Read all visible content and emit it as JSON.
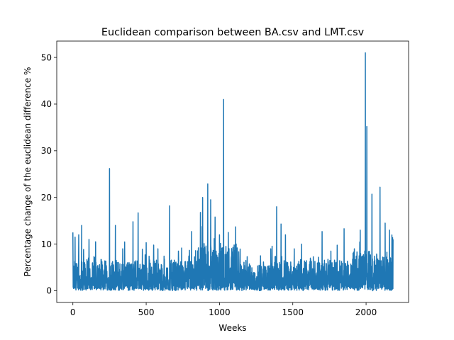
{
  "chart_data": {
    "type": "line",
    "title": "Euclidean comparison between BA.csv and LMT.csv",
    "xlabel": "Weeks",
    "ylabel": "Percentage change of the euclidean difference %",
    "xlim": [
      -110,
      2290
    ],
    "ylim": [
      -2.5,
      53.5
    ],
    "xticks": [
      0,
      500,
      1000,
      1500,
      2000
    ],
    "yticks": [
      0,
      10,
      20,
      30,
      40,
      50
    ],
    "grid": false,
    "legend": "none",
    "line_color": "#1f77b4",
    "n_points": 2185,
    "series": [
      {
        "peaks": [
          {
            "x": 0,
            "y": 12.5
          },
          {
            "x": 15,
            "y": 11.5
          },
          {
            "x": 40,
            "y": 12.0
          },
          {
            "x": 60,
            "y": 14.0
          },
          {
            "x": 110,
            "y": 11.0
          },
          {
            "x": 155,
            "y": 10.5
          },
          {
            "x": 250,
            "y": 26.2
          },
          {
            "x": 290,
            "y": 14.0
          },
          {
            "x": 340,
            "y": 9.0
          },
          {
            "x": 410,
            "y": 14.8
          },
          {
            "x": 445,
            "y": 16.7
          },
          {
            "x": 500,
            "y": 10.3
          },
          {
            "x": 580,
            "y": 9.0
          },
          {
            "x": 660,
            "y": 18.2
          },
          {
            "x": 720,
            "y": 8.5
          },
          {
            "x": 810,
            "y": 12.7
          },
          {
            "x": 870,
            "y": 16.8
          },
          {
            "x": 885,
            "y": 20.0
          },
          {
            "x": 920,
            "y": 22.9
          },
          {
            "x": 940,
            "y": 19.5
          },
          {
            "x": 970,
            "y": 15.8
          },
          {
            "x": 1000,
            "y": 12.0
          },
          {
            "x": 1028,
            "y": 41.0
          },
          {
            "x": 1060,
            "y": 12.5
          },
          {
            "x": 1110,
            "y": 13.7
          },
          {
            "x": 1180,
            "y": 6.5
          },
          {
            "x": 1280,
            "y": 7.5
          },
          {
            "x": 1350,
            "y": 9.0
          },
          {
            "x": 1390,
            "y": 18.0
          },
          {
            "x": 1420,
            "y": 14.3
          },
          {
            "x": 1450,
            "y": 12.0
          },
          {
            "x": 1510,
            "y": 9.0
          },
          {
            "x": 1560,
            "y": 10.0
          },
          {
            "x": 1620,
            "y": 7.0
          },
          {
            "x": 1700,
            "y": 12.7
          },
          {
            "x": 1760,
            "y": 8.5
          },
          {
            "x": 1850,
            "y": 13.3
          },
          {
            "x": 1920,
            "y": 9.0
          },
          {
            "x": 1960,
            "y": 13.0
          },
          {
            "x": 1995,
            "y": 51.0
          },
          {
            "x": 2005,
            "y": 35.2
          },
          {
            "x": 2040,
            "y": 20.7
          },
          {
            "x": 2095,
            "y": 22.2
          },
          {
            "x": 2130,
            "y": 14.5
          },
          {
            "x": 2160,
            "y": 13.0
          },
          {
            "x": 2185,
            "y": 11.0
          }
        ]
      }
    ]
  }
}
